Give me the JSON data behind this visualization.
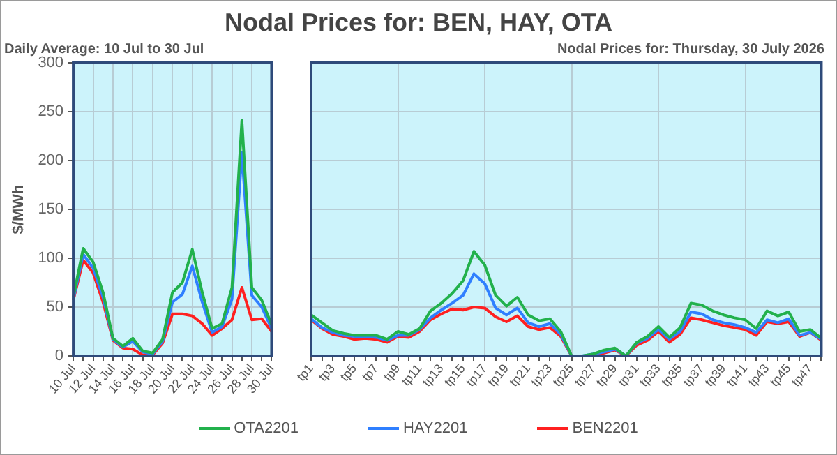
{
  "chart_data": [
    {
      "type": "line",
      "title": "Nodal Prices for: BEN, HAY, OTA",
      "subtitle": "Daily Average: 10 Jul to 30 Jul",
      "ylabel": "$/MWh",
      "categories": [
        "10 Jul",
        null,
        "12 Jul",
        null,
        "14 Jul",
        null,
        "16 Jul",
        null,
        "18 Jul",
        null,
        "20 Jul",
        null,
        "22 Jul",
        null,
        "24 Jul",
        null,
        "26 Jul",
        null,
        "28 Jul",
        null,
        "30 Jul"
      ],
      "series": [
        {
          "color": "#22b14c",
          "values": [
            60,
            110,
            96,
            65,
            18,
            10,
            18,
            5,
            3,
            17,
            65,
            75,
            109,
            65,
            28,
            33,
            70,
            241,
            70,
            57,
            32
          ]
        },
        {
          "color": "#2f7fff",
          "values": [
            58,
            104,
            90,
            60,
            17,
            9,
            15,
            4,
            2,
            15,
            55,
            63,
            92,
            55,
            24,
            30,
            58,
            208,
            62,
            50,
            28
          ]
        },
        {
          "color": "#ff2020",
          "values": [
            57,
            98,
            85,
            55,
            16,
            8,
            7,
            1,
            1,
            13,
            43,
            43,
            41,
            33,
            21,
            28,
            37,
            70,
            37,
            38,
            25
          ]
        }
      ],
      "ylim": [
        0,
        300
      ],
      "yticks": [
        0,
        50,
        100,
        150,
        200,
        250,
        300
      ],
      "grid": true,
      "legend": false
    },
    {
      "type": "line",
      "subtitle": "Nodal Prices for: Thursday, 30 July 2026",
      "categories": [
        "tp1",
        null,
        "tp3",
        null,
        "tp5",
        null,
        "tp7",
        null,
        "tp9",
        null,
        "tp11",
        null,
        "tp13",
        null,
        "tp15",
        null,
        "tp17",
        null,
        "tp19",
        null,
        "tp21",
        null,
        "tp23",
        null,
        "tp25",
        null,
        "tp27",
        null,
        "tp29",
        null,
        "tp31",
        null,
        "tp33",
        null,
        "tp35",
        null,
        "tp37",
        null,
        "tp39",
        null,
        "tp41",
        null,
        "tp43",
        null,
        "tp45",
        null,
        "tp47",
        null
      ],
      "series": [
        {
          "name": "OTA2201",
          "color": "#22b14c",
          "values": [
            42,
            34,
            26,
            23,
            21,
            21,
            21,
            17,
            25,
            22,
            28,
            46,
            54,
            64,
            77,
            107,
            93,
            62,
            51,
            60,
            42,
            36,
            38,
            25,
            0,
            0,
            2,
            6,
            8,
            0,
            14,
            20,
            30,
            19,
            29,
            54,
            52,
            46,
            42,
            39,
            37,
            28,
            46,
            41,
            45,
            25,
            27,
            18
          ]
        },
        {
          "name": "HAY2201",
          "color": "#2f7fff",
          "values": [
            38,
            29,
            24,
            21,
            20,
            20,
            19,
            16,
            21,
            21,
            27,
            39,
            47,
            54,
            62,
            84,
            74,
            49,
            42,
            49,
            34,
            30,
            33,
            22,
            0,
            0,
            2,
            4,
            7,
            0,
            13,
            18,
            27,
            17,
            25,
            45,
            43,
            37,
            34,
            32,
            29,
            24,
            37,
            34,
            38,
            21,
            24,
            17
          ]
        },
        {
          "name": "BEN2201",
          "color": "#ff2020",
          "values": [
            37,
            28,
            22,
            20,
            17,
            18,
            17,
            14,
            20,
            19,
            25,
            37,
            43,
            48,
            47,
            50,
            49,
            40,
            35,
            41,
            30,
            27,
            29,
            20,
            0,
            0,
            0,
            3,
            6,
            0,
            11,
            16,
            25,
            14,
            22,
            39,
            37,
            34,
            31,
            29,
            27,
            21,
            35,
            33,
            35,
            20,
            24,
            16
          ]
        }
      ],
      "ylim": [
        0,
        300
      ],
      "yticks": [
        0,
        50,
        100,
        150,
        200,
        250,
        300
      ],
      "grid": true,
      "legend": "bottom",
      "tick_labels": "x"
    }
  ]
}
